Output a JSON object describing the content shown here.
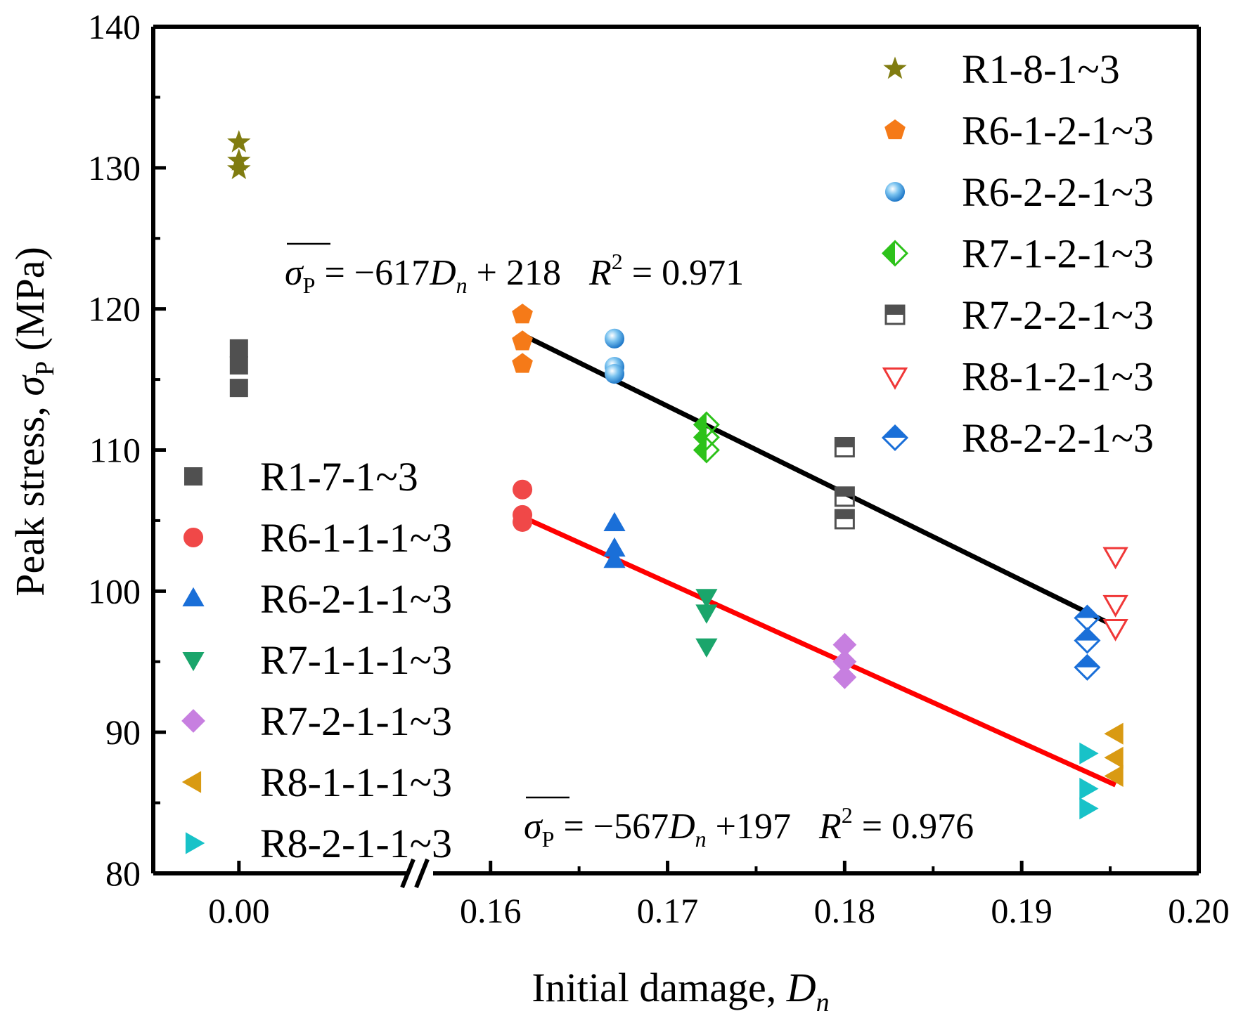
{
  "chart_data": {
    "type": "scatter",
    "title": "",
    "xlabel": "Initial damage, ",
    "xlabel_var": "D",
    "xlabel_sub": "n",
    "ylabel": "Peak stress, ",
    "ylabel_var": "σ",
    "ylabel_sub": "P",
    "ylabel_unit": " (MPa)",
    "ylim": [
      80,
      140
    ],
    "xlim_broken": [
      [
        -0.0045,
        0.0095
      ],
      [
        0.156,
        0.2
      ]
    ],
    "y_ticks": [
      "80",
      "90",
      "100",
      "110",
      "120",
      "130",
      "140"
    ],
    "x_ticks": [
      {
        "value": 0.0,
        "label": "0.00"
      },
      {
        "value": 0.16,
        "label": "0.16"
      },
      {
        "value": 0.17,
        "label": "0.17"
      },
      {
        "value": 0.18,
        "label": "0.18"
      },
      {
        "value": 0.19,
        "label": "0.19"
      },
      {
        "value": 0.2,
        "label": "0.20"
      }
    ],
    "legend_left": [
      "R1-7-1~3",
      "R6-1-1-1~3",
      "R6-2-1-1~3",
      "R7-1-1-1~3",
      "R7-2-1-1~3",
      "R8-1-1-1~3",
      "R8-2-1-1~3"
    ],
    "legend_right": [
      "R1-8-1~3",
      "R6-1-2-1~3",
      "R6-2-2-1~3",
      "R7-1-2-1~3",
      "R7-2-2-1~3",
      "R8-1-2-1~3",
      "R8-2-2-1~3"
    ],
    "series": [
      {
        "name": "R1-7-1~3",
        "marker": "square",
        "color": "#505050",
        "x": [
          0.0,
          0.0,
          0.0
        ],
        "y": [
          117.2,
          116.0,
          114.4
        ]
      },
      {
        "name": "R6-1-1-1~3",
        "marker": "circle",
        "color": "#f04848",
        "x": [
          0.1618,
          0.1618,
          0.1618
        ],
        "y": [
          107.2,
          105.4,
          104.9
        ]
      },
      {
        "name": "R6-2-1-1~3",
        "marker": "triangle-up",
        "color": "#1a6fd8",
        "x": [
          0.167,
          0.167,
          0.167
        ],
        "y": [
          104.8,
          103.0,
          102.2
        ]
      },
      {
        "name": "R7-1-1-1~3",
        "marker": "triangle-down",
        "color": "#1aa56b",
        "x": [
          0.1722,
          0.1722,
          0.1722
        ],
        "y": [
          99.6,
          98.5,
          96.1
        ]
      },
      {
        "name": "R7-2-1-1~3",
        "marker": "diamond",
        "color": "#c77fe0",
        "x": [
          0.18,
          0.18,
          0.18
        ],
        "y": [
          96.2,
          95.0,
          93.9
        ]
      },
      {
        "name": "R8-1-1-1~3",
        "marker": "triangle-left",
        "color": "#d99a12",
        "x": [
          0.1953,
          0.1953,
          0.1953
        ],
        "y": [
          89.9,
          88.2,
          86.9
        ]
      },
      {
        "name": "R8-2-1-1~3",
        "marker": "triangle-right",
        "color": "#18c2c8",
        "x": [
          0.1937,
          0.1937,
          0.1937
        ],
        "y": [
          88.5,
          86.0,
          84.6
        ]
      },
      {
        "name": "R1-8-1~3",
        "marker": "star",
        "color": "#807c10",
        "x": [
          0.0,
          0.0,
          0.0
        ],
        "y": [
          131.8,
          130.5,
          129.9
        ]
      },
      {
        "name": "R6-1-2-1~3",
        "marker": "pentagon",
        "color": "#f57a18",
        "x": [
          0.1618,
          0.1618,
          0.1618
        ],
        "y": [
          119.6,
          117.7,
          116.1
        ]
      },
      {
        "name": "R6-2-2-1~3",
        "marker": "sphere",
        "color": "#4aa8e8",
        "x": [
          0.167,
          0.167,
          0.167
        ],
        "y": [
          117.9,
          115.9,
          115.4
        ]
      },
      {
        "name": "R7-1-2-1~3",
        "marker": "diamond-half-left",
        "color": "#2dc21a",
        "x": [
          0.1722,
          0.1722,
          0.1722
        ],
        "y": [
          111.8,
          110.9,
          110.0
        ]
      },
      {
        "name": "R7-2-2-1~3",
        "marker": "square-half-top",
        "color": "#505050",
        "x": [
          0.18,
          0.18,
          0.18
        ],
        "y": [
          110.2,
          106.7,
          105.1
        ]
      },
      {
        "name": "R8-1-2-1~3",
        "marker": "triangle-down-open",
        "color": "#f03838",
        "x": [
          0.1953,
          0.1953,
          0.1953
        ],
        "y": [
          102.5,
          99.1,
          97.4
        ]
      },
      {
        "name": "R8-2-2-1~3",
        "marker": "diamond-half-top",
        "color": "#1a6fd8",
        "x": [
          0.1937,
          0.1937,
          0.1937
        ],
        "y": [
          98.1,
          96.5,
          94.6
        ]
      }
    ],
    "fits": [
      {
        "name": "upper-fit",
        "color": "#000000",
        "slope": -617,
        "intercept": 218,
        "x_range": [
          0.1618,
          0.1953
        ],
        "r2": "0.971"
      },
      {
        "name": "lower-fit",
        "color": "#ff0000",
        "slope": -567,
        "intercept": 197,
        "x_range": [
          0.1618,
          0.1953
        ],
        "r2": "0.976"
      }
    ],
    "annotations": {
      "upper": {
        "sym": "σ",
        "sub": "P",
        "eq": " = −617",
        "var": "D",
        "varsub": "n",
        "rest": " + 218",
        "r": "R",
        "sup": "2",
        "r2": " = 0.971"
      },
      "lower": {
        "sym": "σ",
        "sub": "P",
        "eq": " = −567",
        "var": "D",
        "varsub": "n",
        "rest": " +197",
        "r": "R",
        "sup": "2",
        "r2": " = 0.976"
      }
    }
  }
}
